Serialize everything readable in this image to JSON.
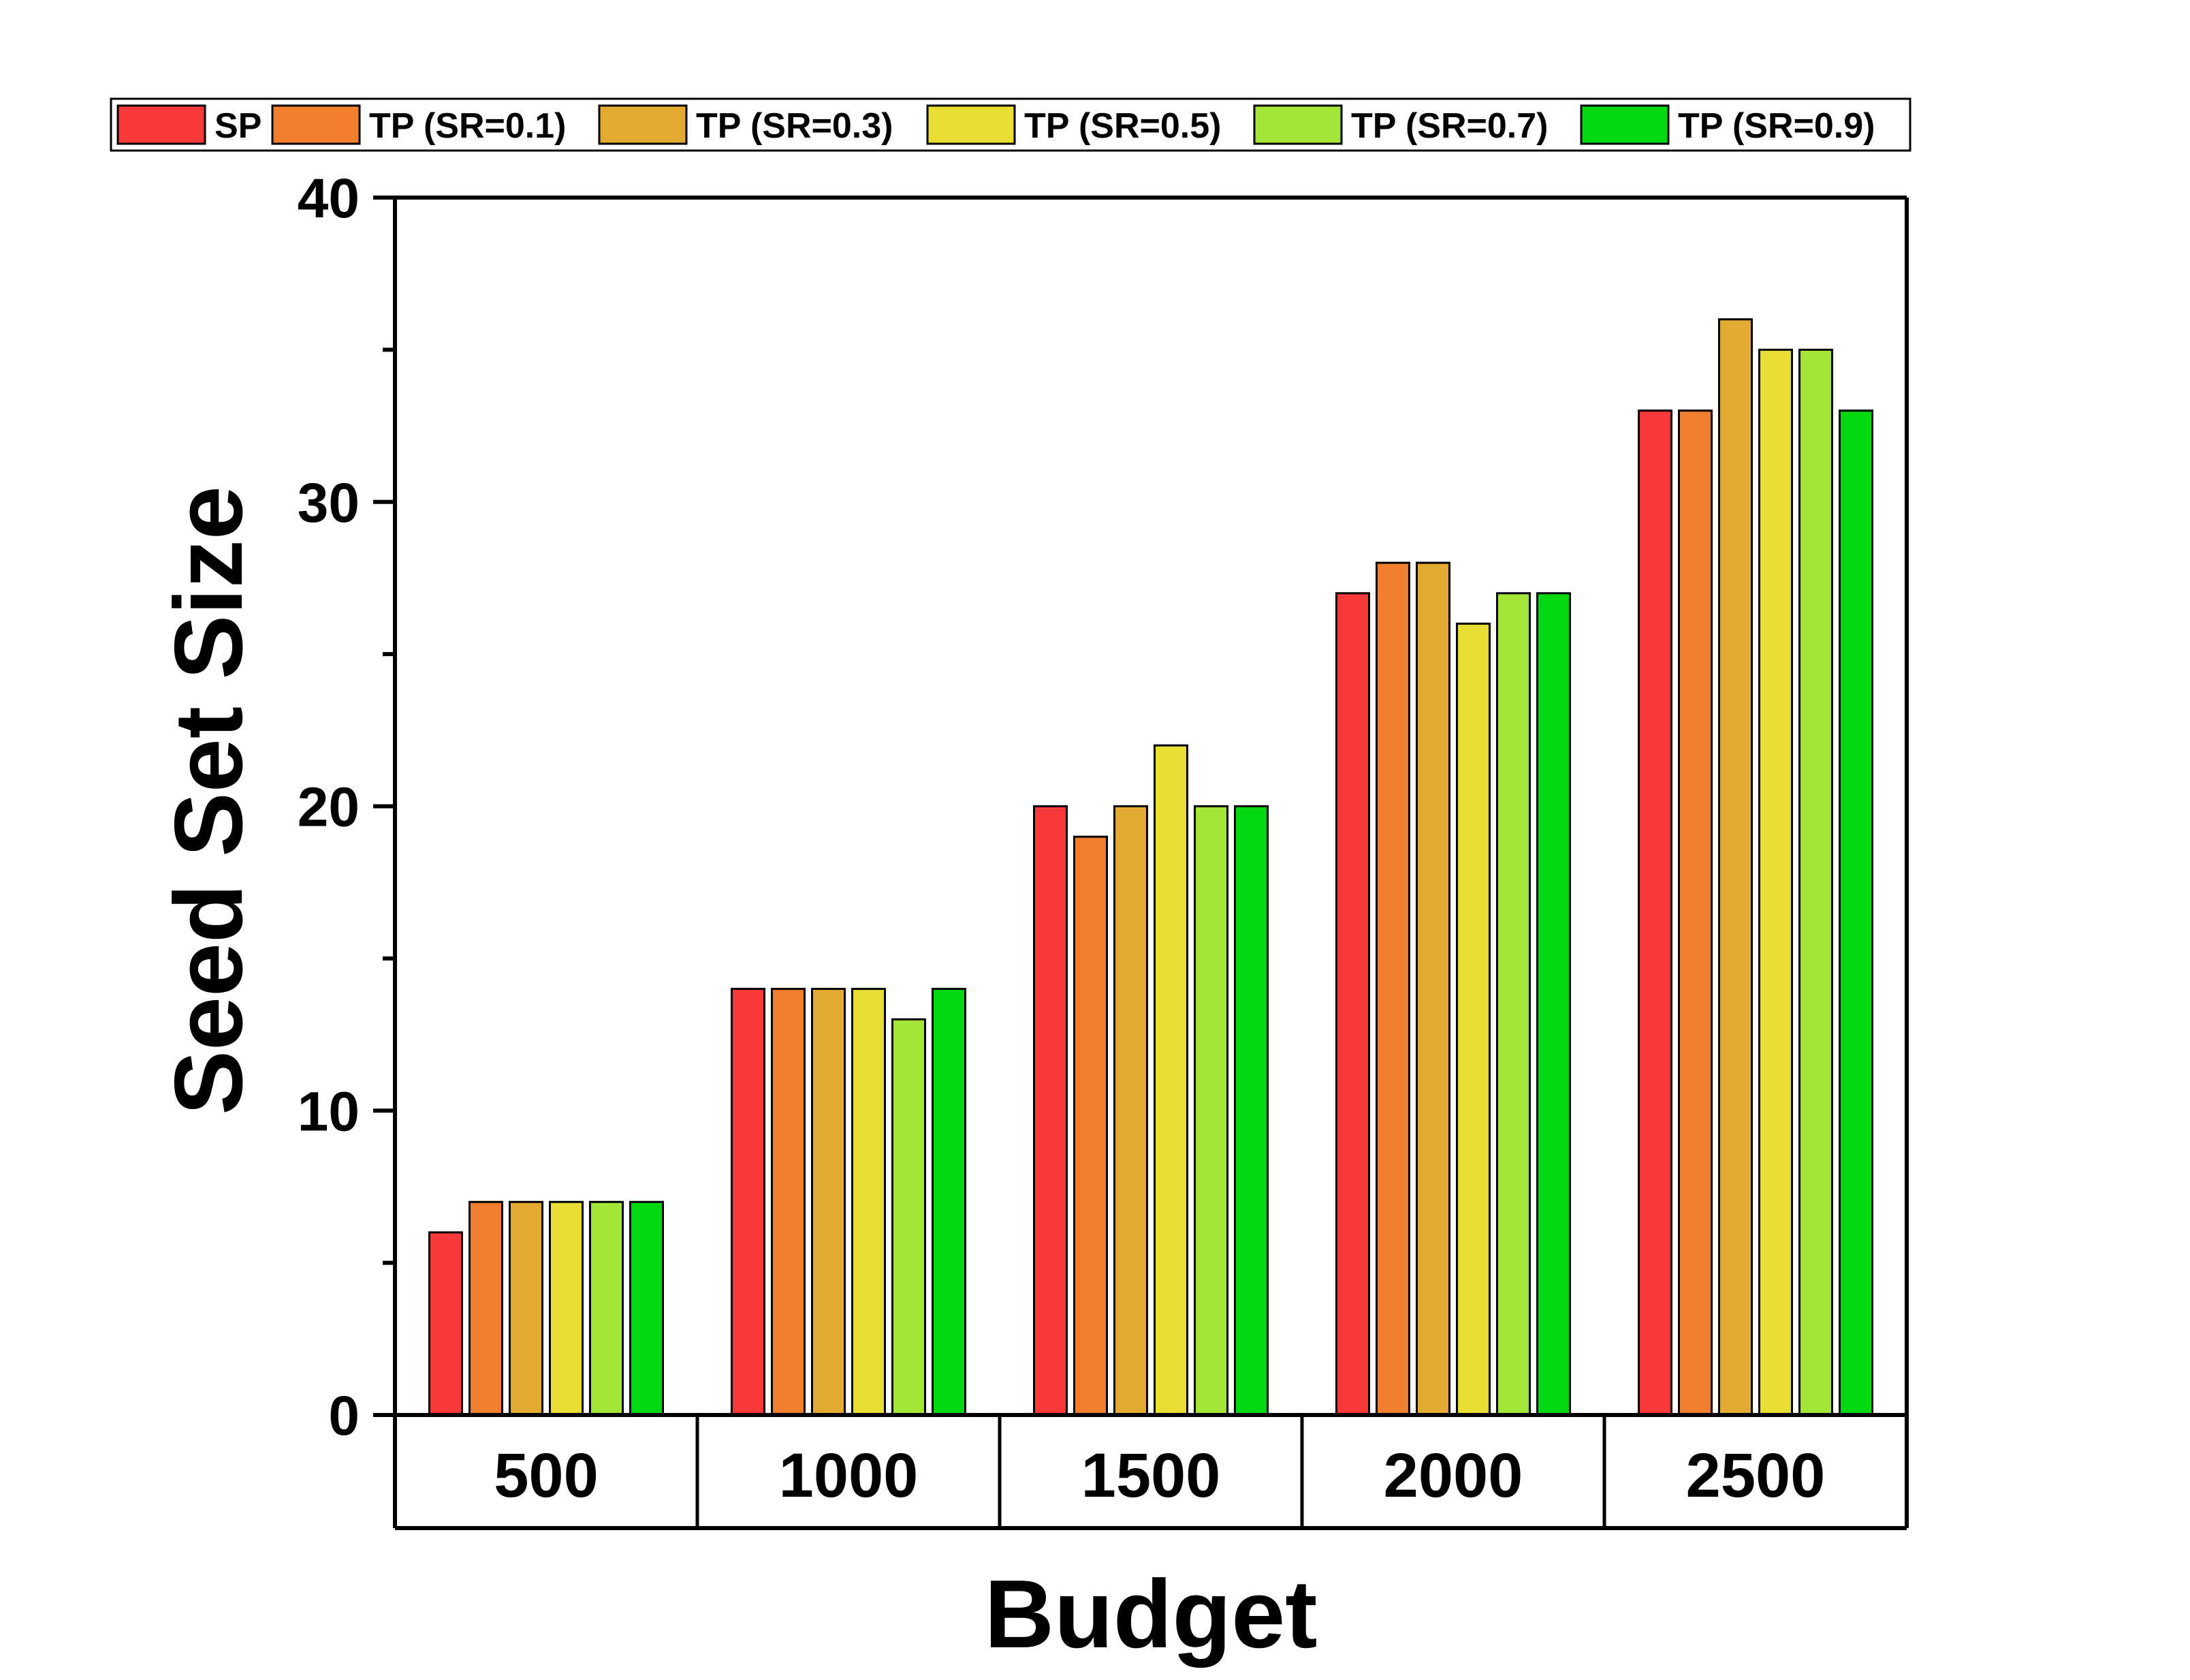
{
  "chart_data": {
    "type": "bar",
    "title": "",
    "xlabel": "Budget",
    "ylabel": "Seed Set Size",
    "categories": [
      "500",
      "1000",
      "1500",
      "2000",
      "2500"
    ],
    "ylim": [
      0,
      40
    ],
    "yticks": [
      0,
      10,
      20,
      30,
      40
    ],
    "minor_yticks": [
      5,
      15,
      25,
      35
    ],
    "grid": false,
    "legend_position": "top",
    "series": [
      {
        "name": "SP",
        "color": "#F8393C",
        "values": [
          6,
          14,
          20,
          27,
          33
        ]
      },
      {
        "name": "TP (SR=0.1)",
        "color": "#EF7F2C",
        "values": [
          7,
          14,
          19,
          28,
          33
        ]
      },
      {
        "name": "TP (SR=0.3)",
        "color": "#E2AA31",
        "values": [
          7,
          14,
          20,
          28,
          36
        ]
      },
      {
        "name": "TP (SR=0.5)",
        "color": "#E8DD33",
        "values": [
          7,
          14,
          22,
          26,
          35
        ]
      },
      {
        "name": "TP (SR=0.7)",
        "color": "#A3E638",
        "values": [
          7,
          13,
          20,
          27,
          35
        ]
      },
      {
        "name": "TP (SR=0.9)",
        "color": "#00D811",
        "values": [
          7,
          14,
          20,
          27,
          33
        ]
      }
    ]
  }
}
